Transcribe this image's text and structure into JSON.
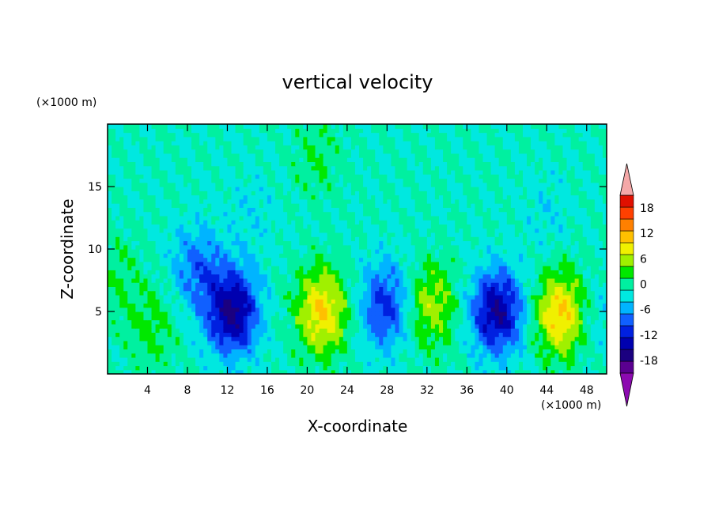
{
  "chart_data": {
    "type": "heatmap",
    "title": "vertical velocity",
    "xlabel": "X-coordinate",
    "ylabel": "Z-coordinate",
    "x_unit": "(×1000 m)",
    "y_unit": "(×1000 m)",
    "xlim": [
      0,
      50
    ],
    "ylim": [
      0,
      20
    ],
    "x_ticks": [
      4,
      8,
      12,
      16,
      20,
      24,
      28,
      32,
      36,
      40,
      44,
      48
    ],
    "y_ticks": [
      5,
      10,
      15
    ],
    "colorbar": {
      "ticks": [
        18,
        12,
        6,
        0,
        -6,
        -12,
        -18
      ],
      "levels": [
        -21,
        -18,
        -15,
        -12,
        -9,
        -6,
        -3,
        0,
        3,
        6,
        9,
        12,
        15,
        18,
        21
      ],
      "colors": [
        "#5a0090",
        "#1b0080",
        "#0000b0",
        "#0020e0",
        "#1060ff",
        "#00b4ff",
        "#00e8e0",
        "#00f0a0",
        "#00e800",
        "#a0f000",
        "#f0f000",
        "#ffc000",
        "#ff8000",
        "#ff4000",
        "#e01000"
      ],
      "under_color": "#8c0ab0",
      "over_color": "#f4a8a8"
    },
    "features": [
      {
        "x": 0.8,
        "z": 8.0,
        "w": 3.0
      },
      {
        "x": 4.5,
        "z": 3.8,
        "w": 4.0
      },
      {
        "x": 12.5,
        "z": 5.0,
        "w": -16.0
      },
      {
        "x": 9.0,
        "z": 8.5,
        "w": -7.0
      },
      {
        "x": 21.5,
        "z": 5.0,
        "w": 12.0
      },
      {
        "x": 27.8,
        "z": 5.5,
        "w": -10.0
      },
      {
        "x": 32.5,
        "z": 5.5,
        "w": 8.0
      },
      {
        "x": 39.0,
        "z": 5.0,
        "w": -15.0
      },
      {
        "x": 45.5,
        "z": 4.8,
        "w": 13.0
      },
      {
        "x": 48.7,
        "z": 4.5,
        "w": -3.0
      },
      {
        "x": 14.5,
        "z": 13.0,
        "w": -2.0
      },
      {
        "x": 21.0,
        "z": 17.5,
        "w": 3.0
      },
      {
        "x": 44.0,
        "z": 13.0,
        "w": -2.0
      }
    ]
  }
}
